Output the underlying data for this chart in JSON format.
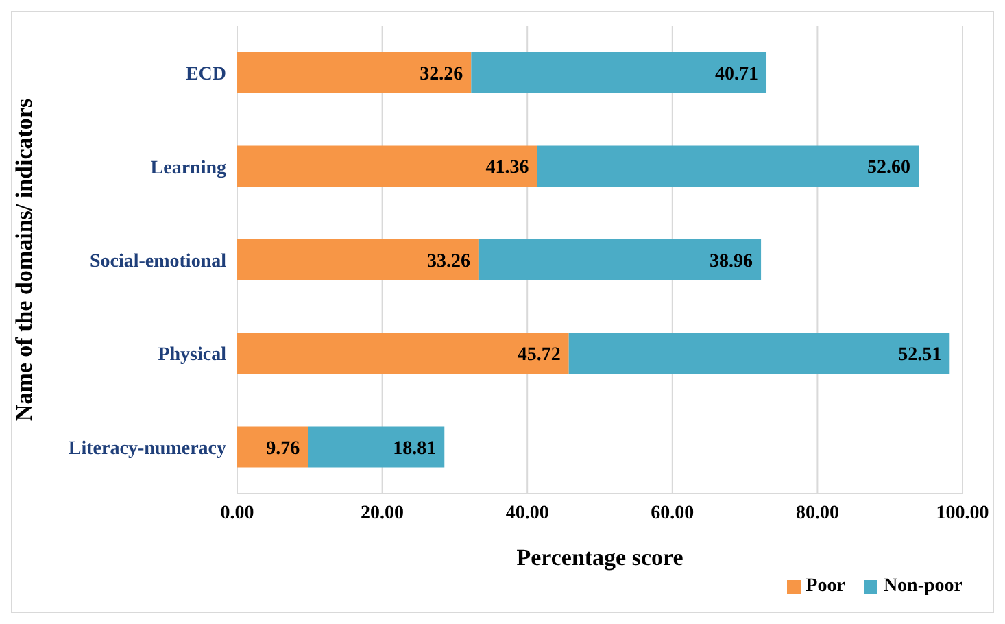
{
  "chart_data": {
    "type": "bar",
    "orientation": "horizontal",
    "stacked": true,
    "xlabel": "Percentage score",
    "ylabel": "Name of the domains/ indicators",
    "categories": [
      "ECD",
      "Learning",
      "Social-emotional",
      "Physical",
      "Literacy-numeracy"
    ],
    "series": [
      {
        "name": "Poor",
        "color": "#f79646",
        "values": [
          32.26,
          41.36,
          33.26,
          45.72,
          9.76
        ],
        "value_labels": [
          "32.26",
          "41.36",
          "33.26",
          "45.72",
          "9.76"
        ]
      },
      {
        "name": "Non-poor",
        "color": "#4bacc6",
        "values": [
          40.71,
          52.6,
          38.96,
          52.51,
          18.81
        ],
        "value_labels": [
          "40.71",
          "52.60",
          "38.96",
          "52.51",
          "18.81"
        ]
      }
    ],
    "xlim": [
      0,
      100
    ],
    "xticks": [
      {
        "value": 0,
        "label": "0.00"
      },
      {
        "value": 20,
        "label": "20.00"
      },
      {
        "value": 40,
        "label": "40.00"
      },
      {
        "value": 60,
        "label": "60.00"
      },
      {
        "value": 80,
        "label": "80.00"
      },
      {
        "value": 100,
        "label": "100.00"
      }
    ],
    "grid": "x",
    "legend": "bottom right"
  }
}
